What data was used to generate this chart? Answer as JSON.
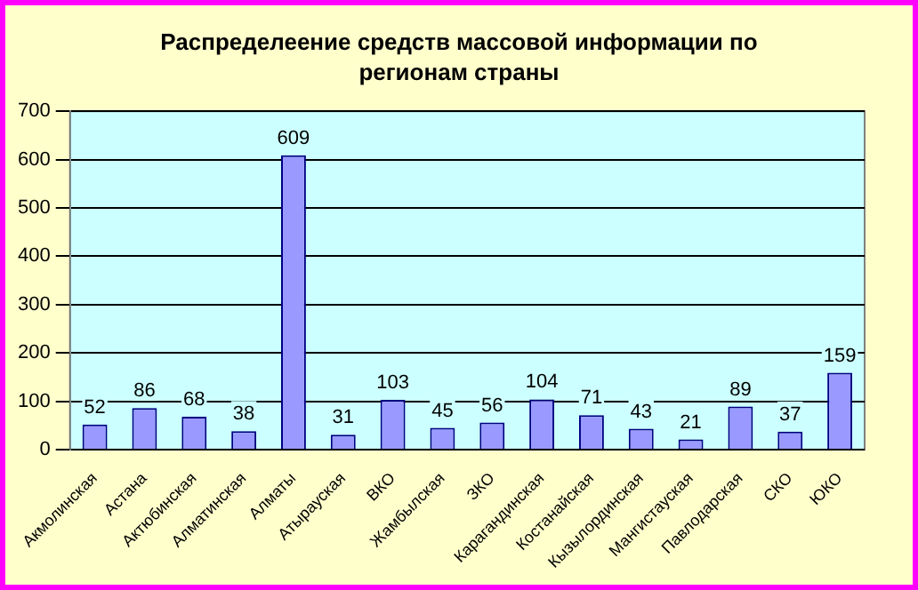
{
  "chart_data": {
    "type": "bar",
    "title": "Распределеение средств массовой информации по регионам страны",
    "categories": [
      "Акмолинская",
      "Астана",
      "Актюбинская",
      "Алматинская",
      "Алматы",
      "Атырауская",
      "ВКО",
      "Жамбылская",
      "ЗКО",
      "Карагандинская",
      "Костанайская",
      "Кызылординская",
      "Мангистауская",
      "Павлодарская",
      "СКО",
      "ЮКО"
    ],
    "values": [
      52,
      86,
      68,
      38,
      609,
      31,
      103,
      45,
      56,
      104,
      71,
      43,
      21,
      89,
      37,
      159
    ],
    "color": "#9999ff",
    "ylim": [
      0,
      700
    ],
    "yticks": [
      0,
      100,
      200,
      300,
      400,
      500,
      600,
      700
    ],
    "grid": "y",
    "data_labels": true,
    "legend": false
  }
}
